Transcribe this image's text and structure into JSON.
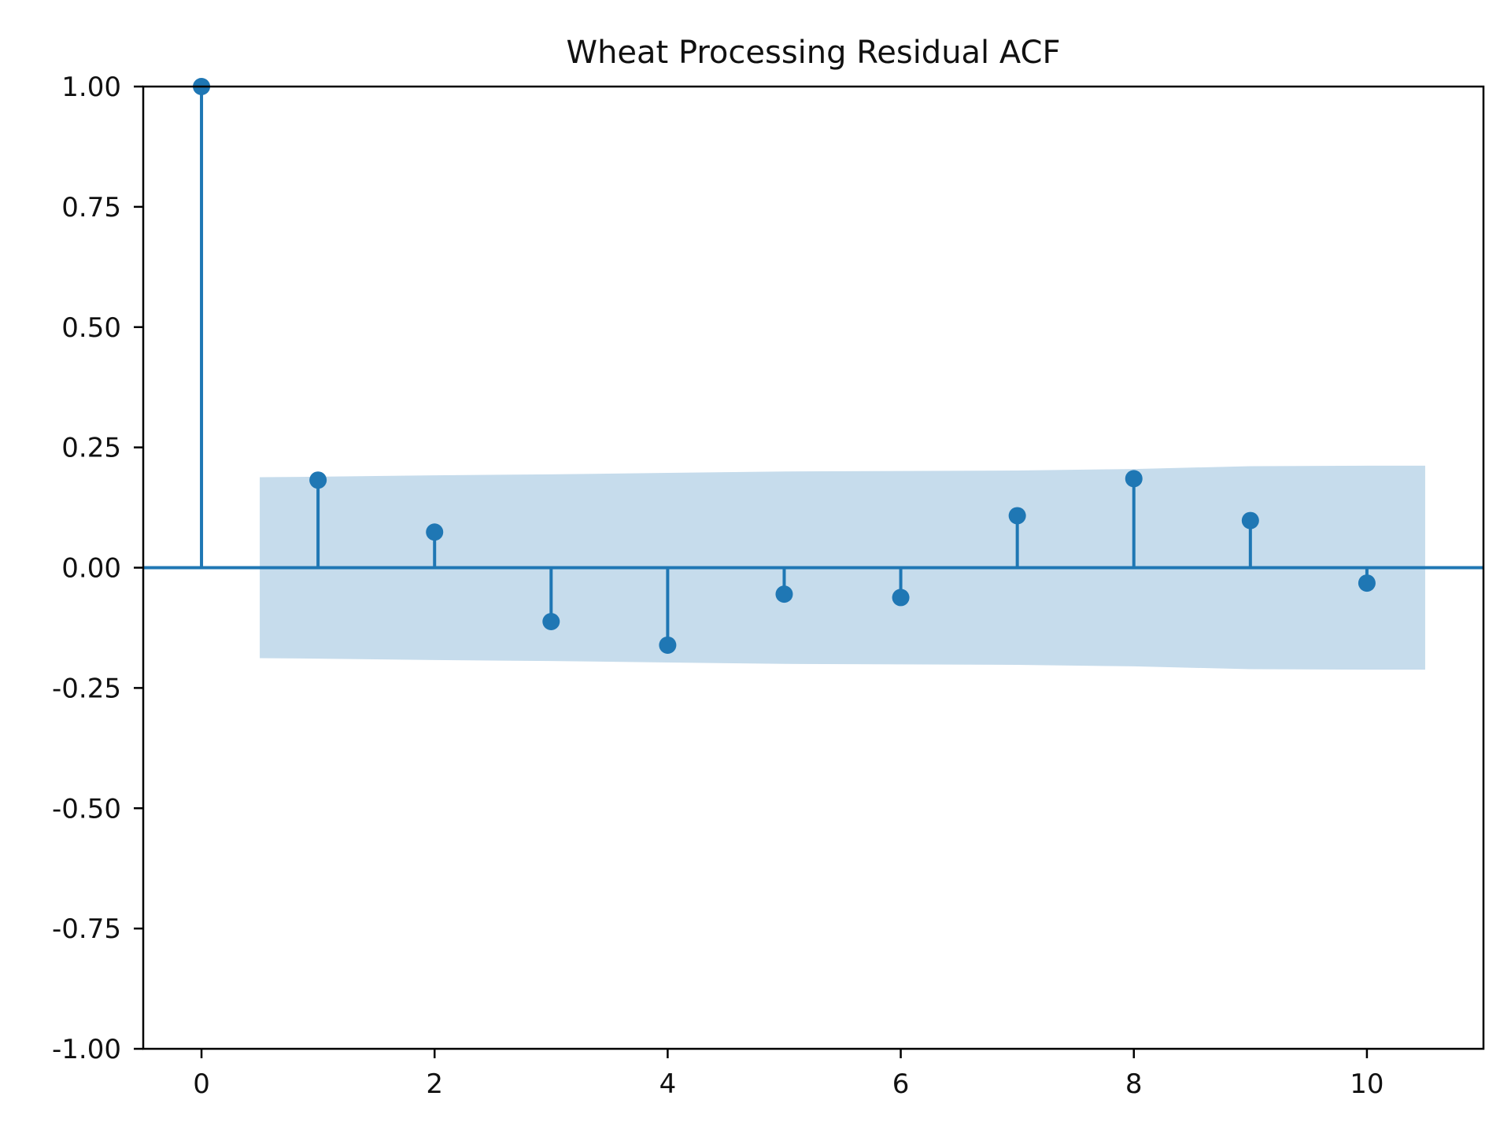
{
  "chart_data": {
    "type": "stem",
    "title": "Wheat Processing Residual ACF",
    "xlabel": "",
    "ylabel": "",
    "xlim": [
      -0.5,
      11
    ],
    "ylim": [
      -1.0,
      1.0
    ],
    "x_ticks": [
      0,
      2,
      4,
      6,
      8,
      10
    ],
    "x_tick_labels": [
      "0",
      "2",
      "4",
      "6",
      "8",
      "10"
    ],
    "y_ticks": [
      1.0,
      0.75,
      0.5,
      0.25,
      0.0,
      -0.25,
      -0.5,
      -0.75,
      -1.0
    ],
    "y_tick_labels": [
      "1.00",
      "0.75",
      "0.50",
      "0.25",
      "0.00",
      "-0.25",
      "-0.50",
      "-0.75",
      "-1.00"
    ],
    "grid": false,
    "lags": [
      0,
      1,
      2,
      3,
      4,
      5,
      6,
      7,
      8,
      9,
      10
    ],
    "acf": [
      1.0,
      0.182,
      0.074,
      -0.112,
      -0.161,
      -0.055,
      -0.062,
      0.108,
      0.185,
      0.098,
      -0.032
    ],
    "confidence_band": {
      "lags": [
        0.5,
        1,
        2,
        3,
        4,
        5,
        6,
        7,
        8,
        9,
        10,
        10.5
      ],
      "upper": [
        0.188,
        0.189,
        0.192,
        0.194,
        0.197,
        0.2,
        0.201,
        0.202,
        0.205,
        0.211,
        0.212,
        0.212
      ],
      "lower": [
        -0.188,
        -0.189,
        -0.192,
        -0.194,
        -0.197,
        -0.2,
        -0.201,
        -0.202,
        -0.205,
        -0.211,
        -0.212,
        -0.212
      ]
    },
    "colors": {
      "stem": "#1f77b4",
      "band": "#c6dcec",
      "axis": "#000000"
    }
  }
}
